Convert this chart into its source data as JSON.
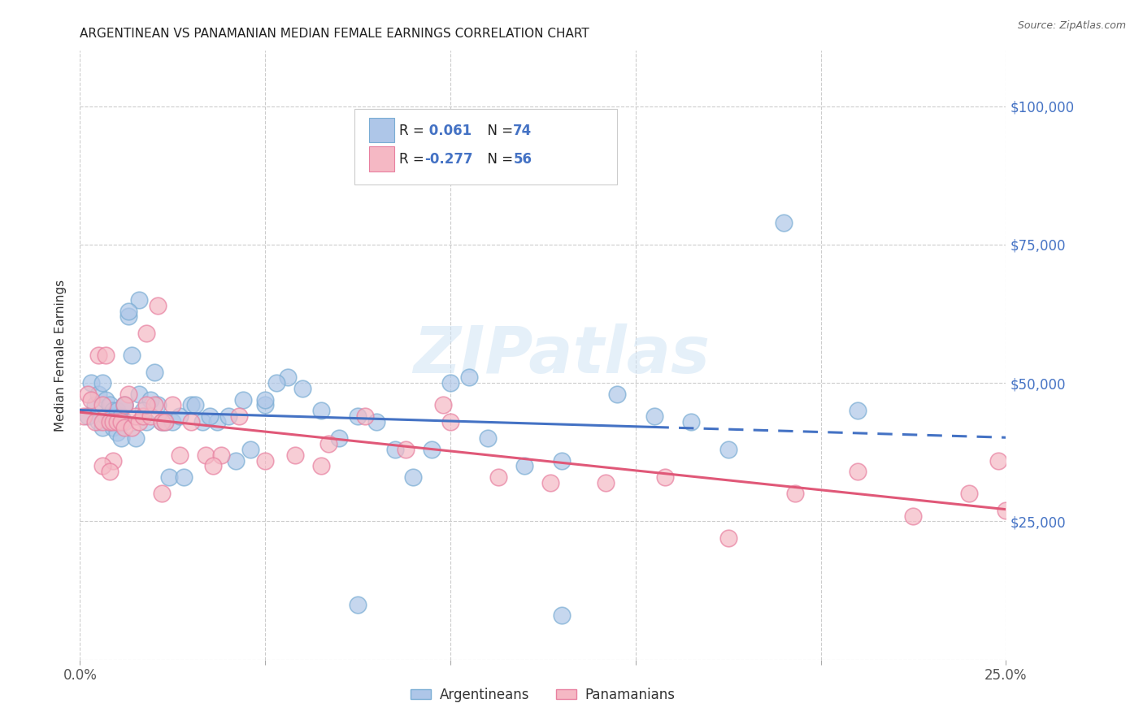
{
  "title": "ARGENTINEAN VS PANAMANIAN MEDIAN FEMALE EARNINGS CORRELATION CHART",
  "source": "Source: ZipAtlas.com",
  "ylabel": "Median Female Earnings",
  "xlim": [
    0.0,
    0.25
  ],
  "ylim": [
    0,
    110000
  ],
  "yticks": [
    0,
    25000,
    50000,
    75000,
    100000
  ],
  "xticks": [
    0.0,
    0.05,
    0.1,
    0.15,
    0.2,
    0.25
  ],
  "background_color": "#ffffff",
  "grid_color": "#cccccc",
  "watermark": "ZIPatlas",
  "blue_color": "#aec6e8",
  "pink_color": "#f5b8c4",
  "blue_edge": "#7aadd4",
  "pink_edge": "#e880a0",
  "line_blue": "#4472c4",
  "line_pink": "#e05878",
  "label_blue": "#4472c4",
  "argentina_x": [
    0.002,
    0.003,
    0.004,
    0.005,
    0.005,
    0.006,
    0.006,
    0.007,
    0.007,
    0.008,
    0.008,
    0.009,
    0.009,
    0.009,
    0.01,
    0.01,
    0.01,
    0.011,
    0.011,
    0.012,
    0.012,
    0.013,
    0.014,
    0.015,
    0.016,
    0.016,
    0.018,
    0.019,
    0.02,
    0.021,
    0.022,
    0.023,
    0.024,
    0.025,
    0.027,
    0.03,
    0.033,
    0.037,
    0.042,
    0.046,
    0.05,
    0.056,
    0.065,
    0.075,
    0.085,
    0.095,
    0.11,
    0.13,
    0.155,
    0.175,
    0.21,
    0.013,
    0.017,
    0.028,
    0.035,
    0.04,
    0.044,
    0.053,
    0.06,
    0.07,
    0.08,
    0.09,
    0.1,
    0.105,
    0.12,
    0.145,
    0.165,
    0.19,
    0.075,
    0.13,
    0.008,
    0.012,
    0.031,
    0.05
  ],
  "argentina_y": [
    44000,
    50000,
    46000,
    43000,
    48000,
    42000,
    50000,
    47000,
    44000,
    43000,
    46000,
    44000,
    45000,
    42000,
    43000,
    45000,
    41000,
    44000,
    40000,
    43000,
    46000,
    62000,
    55000,
    40000,
    65000,
    48000,
    43000,
    47000,
    52000,
    46000,
    43000,
    43000,
    33000,
    43000,
    44000,
    46000,
    43000,
    43000,
    36000,
    38000,
    46000,
    51000,
    45000,
    44000,
    38000,
    38000,
    40000,
    36000,
    44000,
    38000,
    45000,
    63000,
    45000,
    33000,
    44000,
    44000,
    47000,
    50000,
    49000,
    40000,
    43000,
    33000,
    50000,
    51000,
    35000,
    48000,
    43000,
    79000,
    10000,
    8000,
    43000,
    46000,
    46000,
    47000
  ],
  "panama_x": [
    0.001,
    0.002,
    0.003,
    0.004,
    0.005,
    0.006,
    0.006,
    0.007,
    0.008,
    0.009,
    0.009,
    0.01,
    0.011,
    0.012,
    0.013,
    0.014,
    0.015,
    0.016,
    0.017,
    0.018,
    0.019,
    0.02,
    0.021,
    0.022,
    0.023,
    0.025,
    0.027,
    0.03,
    0.034,
    0.038,
    0.043,
    0.05,
    0.058,
    0.067,
    0.077,
    0.088,
    0.1,
    0.113,
    0.127,
    0.142,
    0.158,
    0.175,
    0.193,
    0.21,
    0.225,
    0.24,
    0.248,
    0.25,
    0.006,
    0.008,
    0.012,
    0.018,
    0.022,
    0.036,
    0.065,
    0.098
  ],
  "panama_y": [
    44000,
    48000,
    47000,
    43000,
    55000,
    46000,
    43000,
    55000,
    43000,
    36000,
    43000,
    43000,
    43000,
    42000,
    48000,
    42000,
    44000,
    43000,
    44000,
    59000,
    44000,
    46000,
    64000,
    43000,
    43000,
    46000,
    37000,
    43000,
    37000,
    37000,
    44000,
    36000,
    37000,
    39000,
    44000,
    38000,
    43000,
    33000,
    32000,
    32000,
    33000,
    22000,
    30000,
    34000,
    26000,
    30000,
    36000,
    27000,
    35000,
    34000,
    46000,
    46000,
    30000,
    35000,
    35000,
    46000
  ]
}
